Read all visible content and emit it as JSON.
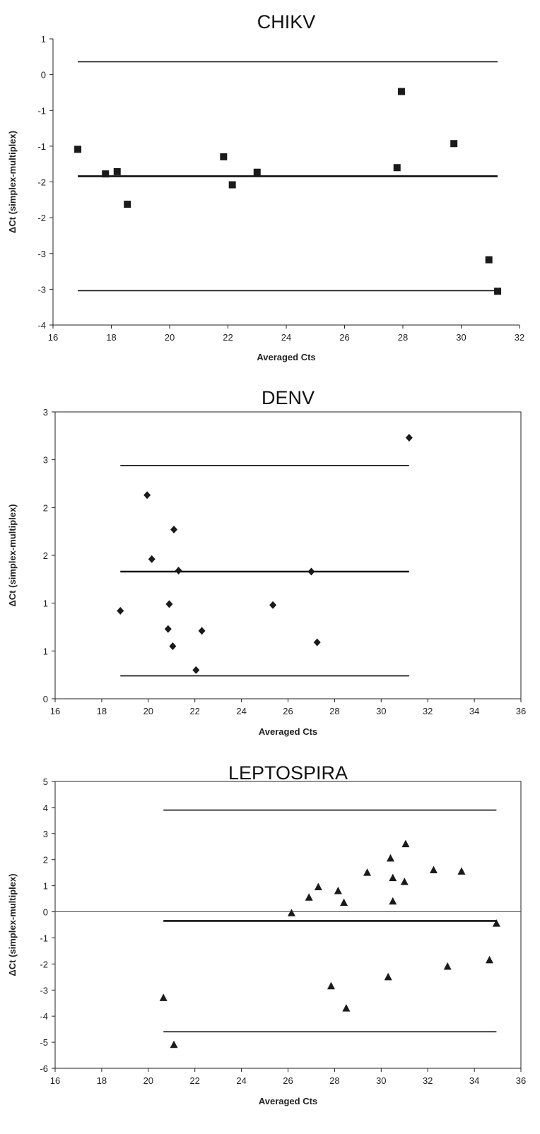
{
  "chart_data": [
    {
      "type": "scatter",
      "title": "CHIKV",
      "xlabel": "Averaged Cts",
      "ylabel": "ΔCt (simplex-multiplex)",
      "xlim": [
        16,
        32
      ],
      "x_ticks": [
        "16",
        "18",
        "20",
        "22",
        "24",
        "26",
        "28",
        "30",
        "32"
      ],
      "ylim": [
        -4,
        1
      ],
      "y_ticks": [
        "1",
        "0",
        "-1",
        "-1",
        "-2",
        "-2",
        "-3",
        "-3",
        "-4"
      ],
      "marker": "square",
      "grid": false,
      "points": [
        {
          "x": 16.85,
          "y": -0.93
        },
        {
          "x": 17.8,
          "y": -1.36
        },
        {
          "x": 18.2,
          "y": -1.32
        },
        {
          "x": 18.55,
          "y": -1.89
        },
        {
          "x": 21.85,
          "y": -1.06
        },
        {
          "x": 22.15,
          "y": -1.55
        },
        {
          "x": 23.0,
          "y": -1.33
        },
        {
          "x": 27.8,
          "y": -1.25
        },
        {
          "x": 27.95,
          "y": 0.08
        },
        {
          "x": 29.75,
          "y": -0.83
        },
        {
          "x": 30.95,
          "y": -2.86
        },
        {
          "x": 31.25,
          "y": -3.41
        }
      ],
      "reference_lines": [
        {
          "y": 0.6,
          "x_range": [
            16.85,
            31.25
          ]
        },
        {
          "y": -1.4,
          "x_range": [
            16.85,
            31.25
          ]
        },
        {
          "y": -3.4,
          "x_range": [
            16.85,
            31.25
          ]
        }
      ]
    },
    {
      "type": "scatter",
      "title": "DENV",
      "xlabel": "Averaged Cts",
      "ylabel": "ΔCt (simplex-multiplex)",
      "xlim": [
        16,
        36
      ],
      "x_ticks": [
        "16",
        "18",
        "20",
        "22",
        "24",
        "26",
        "28",
        "30",
        "32",
        "34",
        "36"
      ],
      "ylim": [
        0,
        3
      ],
      "y_ticks": [
        "3",
        "3",
        "2",
        "2",
        "1",
        "1",
        "0"
      ],
      "marker": "diamond",
      "grid": false,
      "points": [
        {
          "x": 18.8,
          "y": 0.92
        },
        {
          "x": 19.95,
          "y": 2.13
        },
        {
          "x": 20.15,
          "y": 1.46
        },
        {
          "x": 20.85,
          "y": 0.73
        },
        {
          "x": 20.9,
          "y": 0.99
        },
        {
          "x": 21.05,
          "y": 0.55
        },
        {
          "x": 21.1,
          "y": 1.77
        },
        {
          "x": 21.3,
          "y": 1.34
        },
        {
          "x": 22.05,
          "y": 0.3
        },
        {
          "x": 22.3,
          "y": 0.71
        },
        {
          "x": 25.35,
          "y": 0.98
        },
        {
          "x": 27.0,
          "y": 1.33
        },
        {
          "x": 27.25,
          "y": 0.59
        },
        {
          "x": 31.2,
          "y": 2.73
        }
      ],
      "reference_lines": [
        {
          "y": 2.44,
          "x_range": [
            18.8,
            31.2
          ]
        },
        {
          "y": 1.33,
          "x_range": [
            18.8,
            31.2
          ]
        },
        {
          "y": 0.24,
          "x_range": [
            18.8,
            31.2
          ]
        }
      ]
    },
    {
      "type": "scatter",
      "title": "LEPTOSPIRA",
      "xlabel": "Averaged Cts",
      "ylabel": "ΔCt (simplex-multiplex)",
      "xlim": [
        16,
        36
      ],
      "x_ticks": [
        "16",
        "18",
        "20",
        "22",
        "24",
        "26",
        "28",
        "30",
        "32",
        "34",
        "36"
      ],
      "ylim": [
        -6,
        5
      ],
      "y_ticks": [
        "5",
        "4",
        "3",
        "2",
        "1",
        "0",
        "-1",
        "-2",
        "-3",
        "-4",
        "-5",
        "-6"
      ],
      "marker": "triangle",
      "grid": false,
      "points": [
        {
          "x": 20.65,
          "y": -3.3
        },
        {
          "x": 21.1,
          "y": -5.1
        },
        {
          "x": 26.15,
          "y": -0.05
        },
        {
          "x": 26.9,
          "y": 0.55
        },
        {
          "x": 27.3,
          "y": 0.95
        },
        {
          "x": 27.85,
          "y": -2.85
        },
        {
          "x": 28.15,
          "y": 0.8
        },
        {
          "x": 28.4,
          "y": 0.35
        },
        {
          "x": 28.5,
          "y": -3.7
        },
        {
          "x": 29.4,
          "y": 1.5
        },
        {
          "x": 30.3,
          "y": -2.5
        },
        {
          "x": 30.4,
          "y": 2.05
        },
        {
          "x": 30.5,
          "y": 0.4
        },
        {
          "x": 30.5,
          "y": 1.3
        },
        {
          "x": 31.0,
          "y": 1.15
        },
        {
          "x": 31.05,
          "y": 2.6
        },
        {
          "x": 32.25,
          "y": 1.6
        },
        {
          "x": 32.85,
          "y": -2.1
        },
        {
          "x": 33.45,
          "y": 1.55
        },
        {
          "x": 34.65,
          "y": -1.85
        },
        {
          "x": 34.95,
          "y": -0.45
        }
      ],
      "reference_lines": [
        {
          "y": 3.9,
          "x_range": [
            20.65,
            34.95
          ]
        },
        {
          "y": -0.35,
          "x_range": [
            20.65,
            34.95
          ]
        },
        {
          "y": -4.6,
          "x_range": [
            20.65,
            34.95
          ]
        }
      ],
      "zero_line": true
    }
  ]
}
